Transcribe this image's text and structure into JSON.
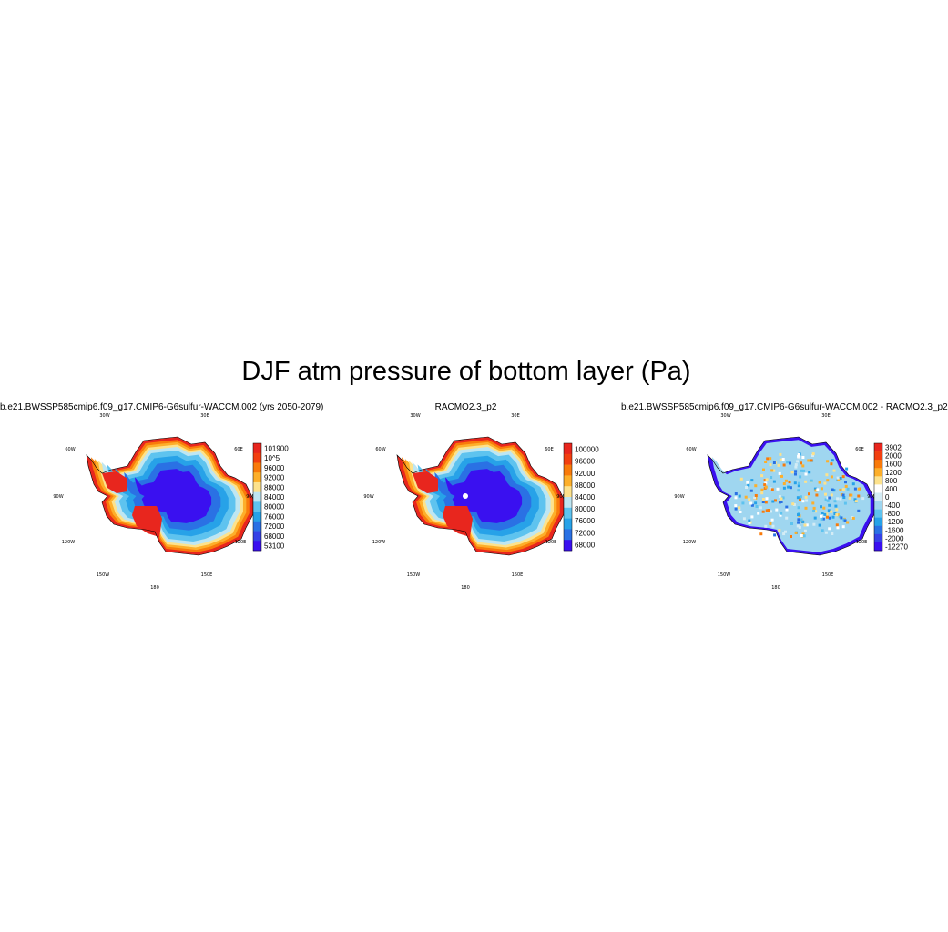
{
  "figure": {
    "title": "DJF atm pressure of bottom layer (Pa)"
  },
  "longitude_labels": [
    "30W",
    "30E",
    "60W",
    "60E",
    "90W",
    "90E",
    "120W",
    "120E",
    "150W",
    "150E",
    "180"
  ],
  "chart_data": [
    {
      "type": "heatmap",
      "title": "b.e21.BWSSP585cmip6.f09_g17.CMIP6-G6sulfur-WACCM.002 (yrs 2050-2079)",
      "projection": "south polar stereographic",
      "field": "surface pressure over Antarctica",
      "colorbar": {
        "labels": [
          "101900",
          "10^5",
          "96000",
          "92000",
          "88000",
          "84000",
          "80000",
          "76000",
          "72000",
          "68000",
          "53100"
        ],
        "colors": [
          "#e8261e",
          "#f23f10",
          "#f97a0a",
          "#fdaf2a",
          "#fde28c",
          "#bee6f2",
          "#5ec3ef",
          "#27a2e8",
          "#2a71e4",
          "#3541e6",
          "#3a10f0"
        ]
      }
    },
    {
      "type": "heatmap",
      "title": "RACMO2.3_p2",
      "projection": "south polar stereographic",
      "field": "surface pressure over Antarctica",
      "colorbar": {
        "labels": [
          "100000",
          "96000",
          "92000",
          "88000",
          "84000",
          "80000",
          "76000",
          "72000",
          "68000"
        ],
        "colors": [
          "#e8261e",
          "#f23f10",
          "#f97a0a",
          "#fdaf2a",
          "#fde28c",
          "#bee6f2",
          "#5ec3ef",
          "#27a2e8",
          "#2a71e4",
          "#3a10f0"
        ]
      }
    },
    {
      "type": "heatmap",
      "title": "b.e21.BWSSP585cmip6.f09_g17.CMIP6-G6sulfur-WACCM.002 - RACMO2.3_p2",
      "projection": "south polar stereographic",
      "field": "difference in surface pressure",
      "colorbar": {
        "labels": [
          "3902",
          "2000",
          "1600",
          "1200",
          "800",
          "400",
          "0",
          "-400",
          "-800",
          "-1200",
          "-1600",
          "-2000",
          "-12270"
        ],
        "colors": [
          "#e8261e",
          "#f23f10",
          "#f97a0a",
          "#fdaf2a",
          "#fde28c",
          "#ffffff",
          "#d4ecf5",
          "#9fd6f0",
          "#5ec3ef",
          "#27a2e8",
          "#2a71e4",
          "#3541e6",
          "#3a10f0"
        ]
      }
    }
  ]
}
